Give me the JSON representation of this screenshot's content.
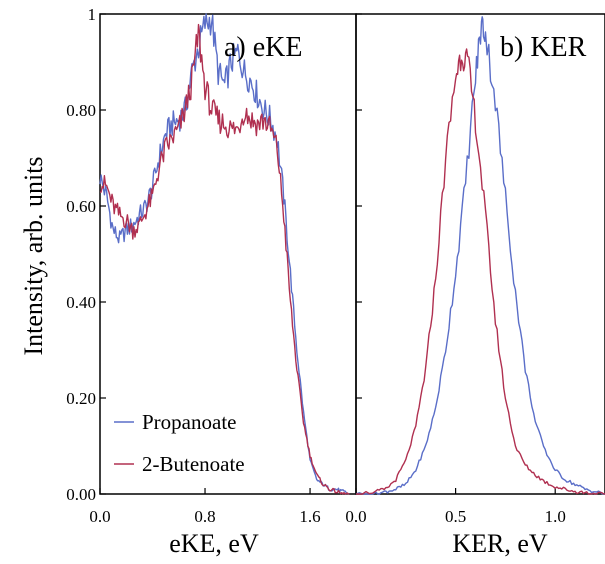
{
  "chart_data": [
    {
      "type": "line",
      "panel_label": "a) eKE",
      "xlabel": "eKE, eV",
      "ylabel": "Intensity, arb. units",
      "xlim": [
        0,
        1.95
      ],
      "ylim": [
        0,
        1.0
      ],
      "x_tick_labels": [
        "0.0",
        "0.8",
        "1.6"
      ],
      "x_tick_values": [
        0.0,
        0.8,
        1.6
      ],
      "y_tick_labels": [
        "0.00",
        "0.20",
        "0.40",
        "0.60",
        "0.80",
        "1"
      ],
      "y_tick_values": [
        0.0,
        0.2,
        0.4,
        0.6,
        0.8,
        1.0
      ],
      "grid": false,
      "legend": {
        "placement": "bottom-left",
        "entries": [
          "Propanoate",
          "2-Butenoate"
        ]
      },
      "series": [
        {
          "name": "Propanoate",
          "color": "#5a6ec8",
          "points": [
            [
              0.0,
              0.66
            ],
            [
              0.05,
              0.62
            ],
            [
              0.1,
              0.55
            ],
            [
              0.15,
              0.53
            ],
            [
              0.2,
              0.55
            ],
            [
              0.25,
              0.56
            ],
            [
              0.3,
              0.58
            ],
            [
              0.35,
              0.6
            ],
            [
              0.4,
              0.64
            ],
            [
              0.45,
              0.7
            ],
            [
              0.5,
              0.75
            ],
            [
              0.55,
              0.77
            ],
            [
              0.6,
              0.78
            ],
            [
              0.65,
              0.8
            ],
            [
              0.7,
              0.88
            ],
            [
              0.75,
              0.93
            ],
            [
              0.8,
              0.98
            ],
            [
              0.85,
              0.99
            ],
            [
              0.9,
              0.88
            ],
            [
              0.95,
              0.85
            ],
            [
              1.0,
              0.9
            ],
            [
              1.05,
              0.92
            ],
            [
              1.1,
              0.88
            ],
            [
              1.15,
              0.86
            ],
            [
              1.2,
              0.83
            ],
            [
              1.25,
              0.8
            ],
            [
              1.3,
              0.78
            ],
            [
              1.35,
              0.74
            ],
            [
              1.4,
              0.62
            ],
            [
              1.45,
              0.46
            ],
            [
              1.5,
              0.3
            ],
            [
              1.55,
              0.17
            ],
            [
              1.6,
              0.07
            ],
            [
              1.65,
              0.03
            ],
            [
              1.7,
              0.02
            ],
            [
              1.75,
              0.01
            ],
            [
              1.8,
              0.01
            ],
            [
              1.85,
              0.005
            ],
            [
              1.9,
              0.0
            ]
          ]
        },
        {
          "name": "2-Butenoate",
          "color": "#b03050",
          "points": [
            [
              0.0,
              0.65
            ],
            [
              0.05,
              0.64
            ],
            [
              0.1,
              0.6
            ],
            [
              0.15,
              0.58
            ],
            [
              0.2,
              0.57
            ],
            [
              0.25,
              0.55
            ],
            [
              0.3,
              0.56
            ],
            [
              0.35,
              0.59
            ],
            [
              0.4,
              0.62
            ],
            [
              0.45,
              0.68
            ],
            [
              0.5,
              0.72
            ],
            [
              0.55,
              0.74
            ],
            [
              0.6,
              0.76
            ],
            [
              0.65,
              0.8
            ],
            [
              0.7,
              0.86
            ],
            [
              0.75,
              0.96
            ],
            [
              0.8,
              0.85
            ],
            [
              0.85,
              0.8
            ],
            [
              0.9,
              0.78
            ],
            [
              0.95,
              0.77
            ],
            [
              1.0,
              0.76
            ],
            [
              1.05,
              0.76
            ],
            [
              1.1,
              0.8
            ],
            [
              1.15,
              0.78
            ],
            [
              1.2,
              0.77
            ],
            [
              1.25,
              0.78
            ],
            [
              1.3,
              0.76
            ],
            [
              1.35,
              0.72
            ],
            [
              1.4,
              0.58
            ],
            [
              1.45,
              0.4
            ],
            [
              1.5,
              0.26
            ],
            [
              1.55,
              0.15
            ],
            [
              1.6,
              0.08
            ],
            [
              1.65,
              0.04
            ],
            [
              1.7,
              0.02
            ],
            [
              1.75,
              0.01
            ],
            [
              1.8,
              0.005
            ],
            [
              1.85,
              0.0
            ],
            [
              1.9,
              0.0
            ]
          ]
        }
      ]
    },
    {
      "type": "line",
      "panel_label": "b) KER",
      "xlabel": "KER, eV",
      "xlim": [
        0,
        1.25
      ],
      "ylim": [
        0,
        1.0
      ],
      "x_tick_labels": [
        "0.0",
        "0.5",
        "1.0"
      ],
      "x_tick_values": [
        0.0,
        0.5,
        1.0
      ],
      "grid": false,
      "series": [
        {
          "name": "Propanoate",
          "color": "#5a6ec8",
          "points": [
            [
              0.0,
              0.0
            ],
            [
              0.1,
              0.0
            ],
            [
              0.15,
              0.005
            ],
            [
              0.2,
              0.01
            ],
            [
              0.25,
              0.02
            ],
            [
              0.3,
              0.05
            ],
            [
              0.35,
              0.1
            ],
            [
              0.4,
              0.18
            ],
            [
              0.45,
              0.3
            ],
            [
              0.5,
              0.46
            ],
            [
              0.55,
              0.65
            ],
            [
              0.6,
              0.87
            ],
            [
              0.63,
              0.98
            ],
            [
              0.65,
              0.96
            ],
            [
              0.7,
              0.82
            ],
            [
              0.75,
              0.62
            ],
            [
              0.8,
              0.42
            ],
            [
              0.85,
              0.26
            ],
            [
              0.9,
              0.15
            ],
            [
              0.95,
              0.09
            ],
            [
              1.0,
              0.05
            ],
            [
              1.05,
              0.03
            ],
            [
              1.1,
              0.02
            ],
            [
              1.15,
              0.01
            ],
            [
              1.2,
              0.005
            ],
            [
              1.25,
              0.0
            ]
          ]
        },
        {
          "name": "2-Butenoate",
          "color": "#b03050",
          "points": [
            [
              0.0,
              0.0
            ],
            [
              0.1,
              0.005
            ],
            [
              0.15,
              0.01
            ],
            [
              0.2,
              0.03
            ],
            [
              0.25,
              0.07
            ],
            [
              0.3,
              0.14
            ],
            [
              0.35,
              0.26
            ],
            [
              0.4,
              0.45
            ],
            [
              0.45,
              0.7
            ],
            [
              0.5,
              0.87
            ],
            [
              0.53,
              0.92
            ],
            [
              0.56,
              0.9
            ],
            [
              0.6,
              0.78
            ],
            [
              0.65,
              0.58
            ],
            [
              0.7,
              0.36
            ],
            [
              0.75,
              0.2
            ],
            [
              0.8,
              0.1
            ],
            [
              0.85,
              0.06
            ],
            [
              0.9,
              0.04
            ],
            [
              0.95,
              0.025
            ],
            [
              1.0,
              0.015
            ],
            [
              1.05,
              0.01
            ],
            [
              1.1,
              0.005
            ],
            [
              1.15,
              0.003
            ],
            [
              1.2,
              0.0
            ],
            [
              1.25,
              0.0
            ]
          ]
        }
      ]
    }
  ]
}
